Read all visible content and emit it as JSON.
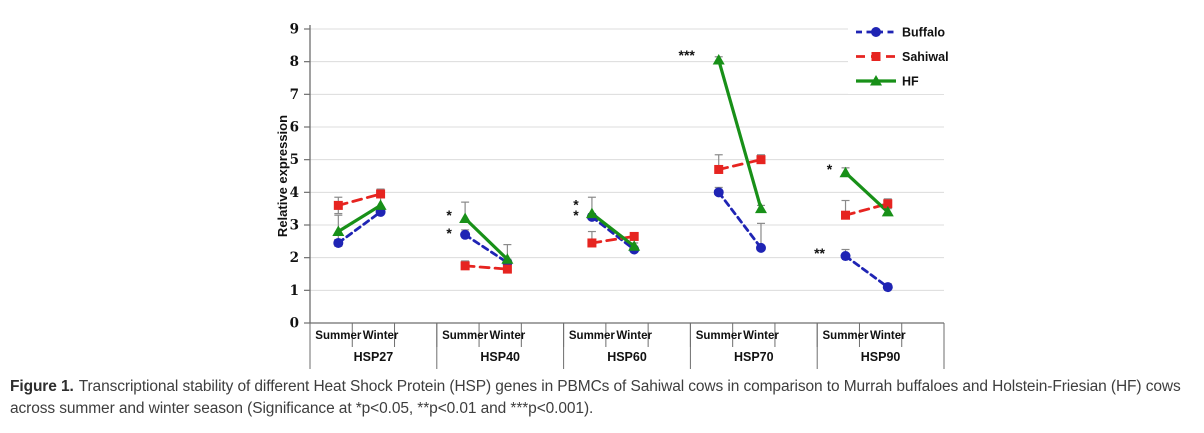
{
  "figure": {
    "caption_prefix": "Figure 1.",
    "caption_text": "Transcriptional stability of different Heat Shock Protein (HSP) genes in PBMCs of Sahiwal cows in comparison to Murrah buffaloes and Holstein-Friesian (HF) cows across summer and winter season (Significance at *p<0.05, **p<0.01 and ***p<0.001)."
  },
  "chart_data": {
    "type": "line",
    "title": "",
    "xlabel": "",
    "ylabel": "Relative expression",
    "ylim": [
      0,
      9
    ],
    "yticks": [
      0,
      1,
      2,
      3,
      4,
      5,
      6,
      7,
      8,
      9
    ],
    "grid": true,
    "legend_position": "top-right",
    "groups": [
      "HSP27",
      "HSP40",
      "HSP60",
      "HSP70",
      "HSP90"
    ],
    "seasons": [
      "Summer",
      "Winter"
    ],
    "colors": {
      "axis": "#6e6e6e",
      "gridline": "#dcdcdc",
      "error_bar": "#8a8a8a",
      "annotation": "#111111"
    },
    "series": [
      {
        "name": "Buffalo",
        "color": "#1f24b4",
        "line": "dashed",
        "marker": "circle",
        "values": [
          [
            2.45,
            3.4
          ],
          [
            2.7,
            1.85
          ],
          [
            3.25,
            2.25
          ],
          [
            4.0,
            2.3
          ],
          [
            2.05,
            1.1
          ]
        ],
        "err_up": [
          [
            0.1,
            0.15
          ],
          [
            0.15,
            0.1
          ],
          [
            0.1,
            0.1
          ],
          [
            0.15,
            0.75
          ],
          [
            0.2,
            0.1
          ]
        ],
        "err_dn": [
          [
            0.1,
            0
          ],
          [
            0,
            0
          ],
          [
            0,
            0
          ],
          [
            0,
            0
          ],
          [
            0,
            0
          ]
        ]
      },
      {
        "name": "Sahiwal",
        "color": "#e62420",
        "line": "dashed",
        "marker": "square",
        "values": [
          [
            3.6,
            3.95
          ],
          [
            1.75,
            1.65
          ],
          [
            2.45,
            2.65
          ],
          [
            4.7,
            5.0
          ],
          [
            3.3,
            3.65
          ]
        ],
        "err_up": [
          [
            0.25,
            0.15
          ],
          [
            0.15,
            0.1
          ],
          [
            0.35,
            0.1
          ],
          [
            0.45,
            0.15
          ],
          [
            0.45,
            0.15
          ]
        ],
        "err_dn": [
          [
            0.25,
            0
          ],
          [
            0.1,
            0
          ],
          [
            0,
            0
          ],
          [
            0,
            0
          ],
          [
            0,
            0
          ]
        ]
      },
      {
        "name": "HF",
        "color": "#189018",
        "line": "solid",
        "marker": "triangle",
        "values": [
          [
            2.8,
            3.6
          ],
          [
            3.2,
            1.95
          ],
          [
            3.35,
            2.35
          ],
          [
            8.05,
            3.5
          ],
          [
            4.6,
            3.4
          ]
        ],
        "err_up": [
          [
            0.5,
            0.25
          ],
          [
            0.5,
            0.45
          ],
          [
            0.5,
            0.1
          ],
          [
            0.1,
            0.1
          ],
          [
            0.15,
            0.1
          ]
        ],
        "err_dn": [
          [
            0.25,
            0
          ],
          [
            0,
            0
          ],
          [
            0,
            0
          ],
          [
            0,
            0
          ],
          [
            0,
            0
          ]
        ]
      }
    ],
    "annotations": [
      {
        "group": 1,
        "season": 0,
        "text": "*",
        "value": 3.3,
        "dx": -16
      },
      {
        "group": 1,
        "season": 0,
        "text": "*",
        "value": 2.75,
        "dx": -16
      },
      {
        "group": 2,
        "season": 0,
        "text": "*",
        "value": 3.62,
        "dx": -16
      },
      {
        "group": 2,
        "season": 0,
        "text": "*",
        "value": 3.3,
        "dx": -16
      },
      {
        "group": 3,
        "season": 0,
        "text": "***",
        "value": 8.2,
        "dx": -32
      },
      {
        "group": 4,
        "season": 0,
        "text": "*",
        "value": 4.72,
        "dx": -16
      },
      {
        "group": 4,
        "season": 0,
        "text": "**",
        "value": 2.15,
        "dx": -26
      }
    ]
  }
}
